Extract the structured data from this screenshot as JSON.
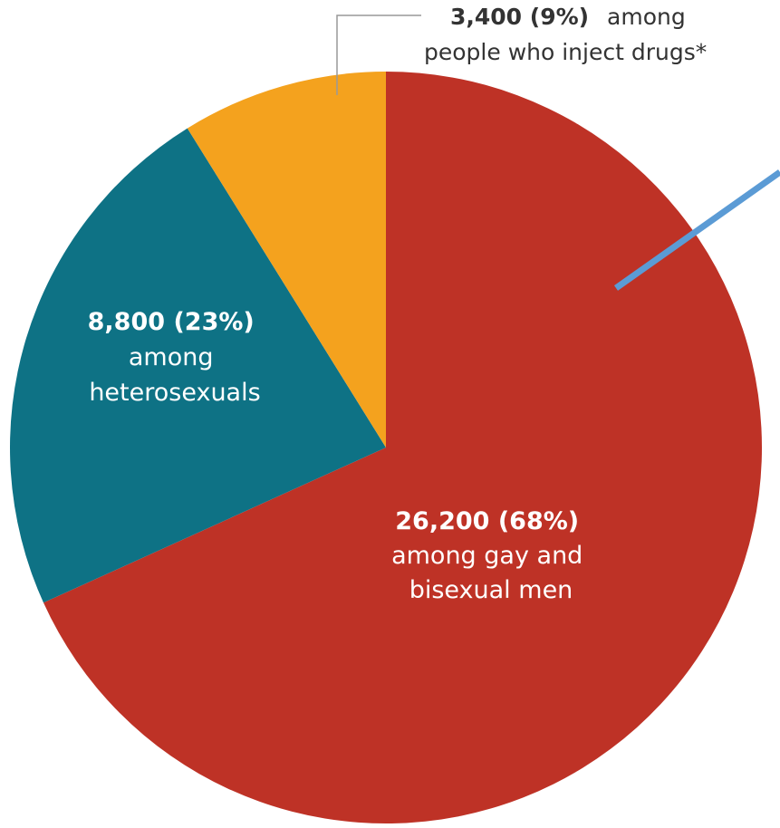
{
  "chart_data": {
    "type": "pie",
    "start_angle_deg": 0,
    "direction": "clockwise",
    "slices": [
      {
        "value": 26200,
        "percent": 68,
        "value_label": "26,200 (68%)",
        "text_lines": [
          "among gay and",
          "bisexual men"
        ],
        "color": "#BE3226"
      },
      {
        "value": 8800,
        "percent": 23,
        "value_label": "8,800 (23%)",
        "text_lines": [
          "among",
          "heterosexuals"
        ],
        "color": "#0E7285"
      },
      {
        "value": 3400,
        "percent": 9,
        "value_label": "3,400 (9%)",
        "text_inline": "among",
        "text_lines": [
          "people who inject drugs*"
        ],
        "color": "#F4A21E"
      }
    ],
    "accent_colors": {
      "callout_line": "#999999",
      "annotation_stroke": "#5B9BD5"
    },
    "legend": "none",
    "grid": false
  }
}
